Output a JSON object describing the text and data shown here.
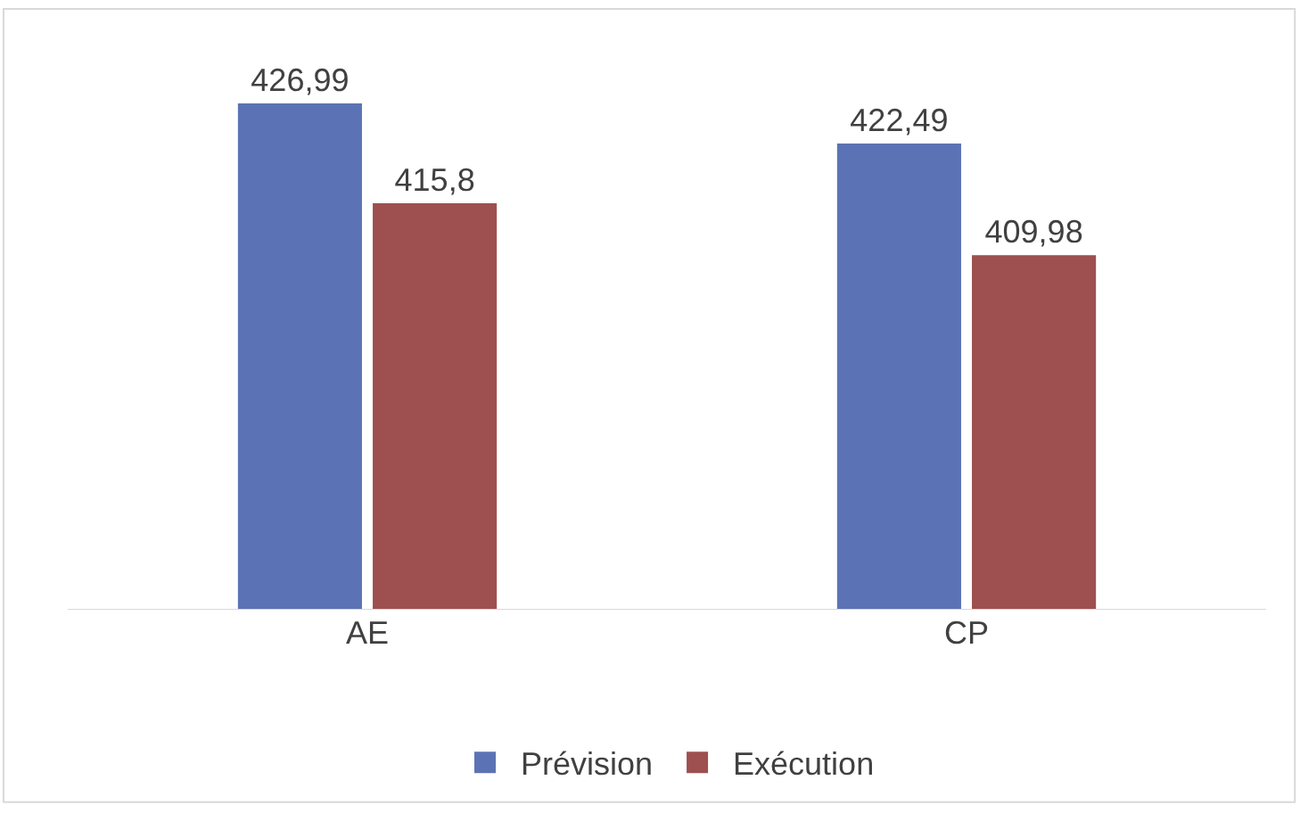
{
  "chart_data": {
    "type": "bar",
    "categories": [
      "AE",
      "CP"
    ],
    "series": [
      {
        "name": "Prévision",
        "color": "#5b73b4",
        "values": [
          426.99,
          422.49
        ],
        "value_labels": [
          "426,99",
          "422,49"
        ]
      },
      {
        "name": "Exécution",
        "color": "#9e4f4f",
        "values": [
          415.8,
          409.98
        ],
        "value_labels": [
          "415,8",
          "409,98"
        ]
      }
    ],
    "ylim": [
      370.2,
      437.6
    ],
    "tick_labels": "x",
    "legend": "bottom"
  }
}
